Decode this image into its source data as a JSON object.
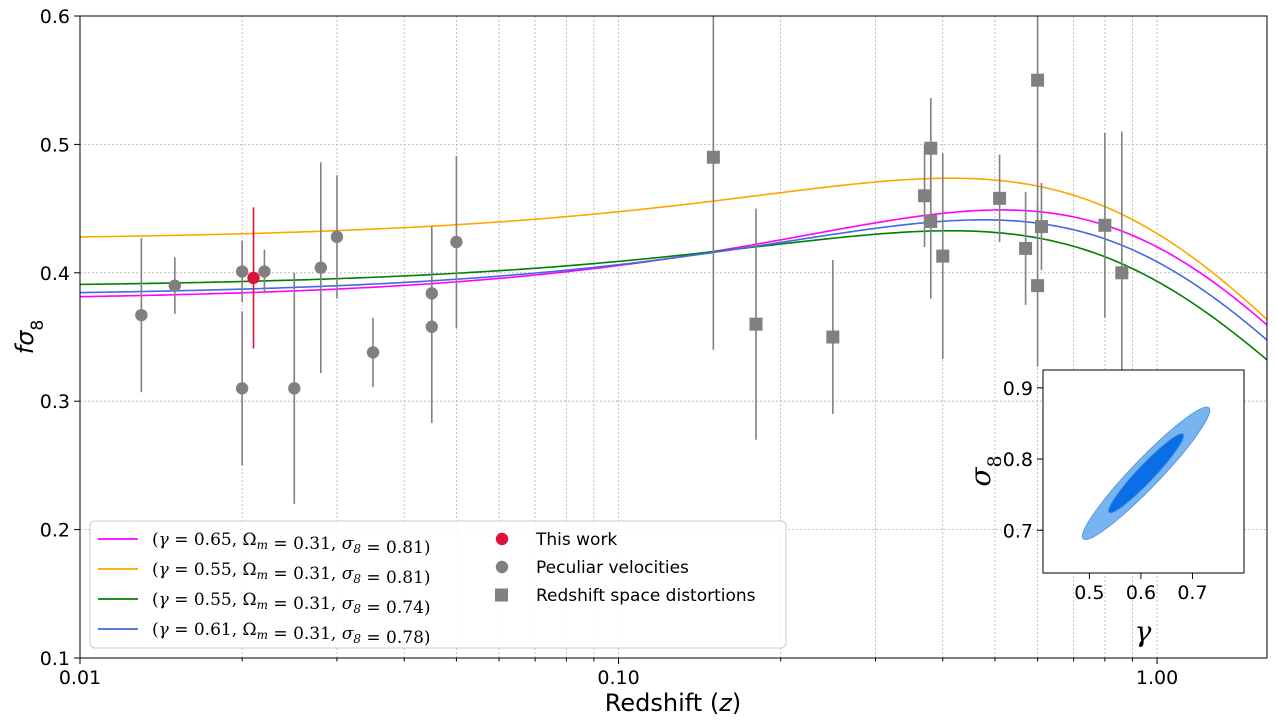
{
  "chart_data": [
    {
      "type": "scatter",
      "xlabel": "Redshift",
      "xlabel_var": "z",
      "ylabel": "fσ8",
      "xscale": "log",
      "xlim": [
        0.01,
        1.6
      ],
      "ylim": [
        0.1,
        0.6
      ],
      "x_ticks": [
        0.01,
        0.1,
        1.0
      ],
      "x_tick_labels": [
        "0.01",
        "0.10",
        "1.00"
      ],
      "y_ticks": [
        0.1,
        0.2,
        0.3,
        0.4,
        0.5,
        0.6
      ],
      "y_tick_labels": [
        "0.1",
        "0.2",
        "0.3",
        "0.4",
        "0.5",
        "0.6"
      ],
      "grid": true,
      "legend_position": "lower-left",
      "series": [
        {
          "name": "(γ = 0.65, Ωm = 0.31, σ8 = 0.81)",
          "kind": "model",
          "gamma": 0.65,
          "omega_m": 0.31,
          "sigma8": 0.81,
          "color": "#ff00ff"
        },
        {
          "name": "(γ = 0.55, Ωm = 0.31, σ8 = 0.81)",
          "kind": "model",
          "gamma": 0.55,
          "omega_m": 0.31,
          "sigma8": 0.81,
          "color": "#ffa500"
        },
        {
          "name": "(γ = 0.55, Ωm = 0.31, σ8 = 0.74)",
          "kind": "model",
          "gamma": 0.55,
          "omega_m": 0.31,
          "sigma8": 0.74,
          "color": "#008000"
        },
        {
          "name": "(γ = 0.61, Ωm = 0.31, σ8 = 0.78)",
          "kind": "model",
          "gamma": 0.61,
          "omega_m": 0.31,
          "sigma8": 0.78,
          "color": "#4169e1"
        },
        {
          "name": "This work",
          "kind": "points",
          "marker": "circle",
          "color": "#dc143c",
          "points": [
            {
              "x": 0.021,
              "y": 0.396,
              "err": 0.055
            }
          ]
        },
        {
          "name": "Peculiar velocities",
          "kind": "points",
          "marker": "circle",
          "color": "#808080",
          "points": [
            {
              "x": 0.013,
              "y": 0.367,
              "err": 0.06
            },
            {
              "x": 0.015,
              "y": 0.39,
              "err": 0.022
            },
            {
              "x": 0.02,
              "y": 0.401,
              "err": 0.024
            },
            {
              "x": 0.02,
              "y": 0.31,
              "err": 0.06
            },
            {
              "x": 0.022,
              "y": 0.401,
              "err": 0.017
            },
            {
              "x": 0.025,
              "y": 0.31,
              "err": 0.09
            },
            {
              "x": 0.028,
              "y": 0.404,
              "err": 0.082
            },
            {
              "x": 0.03,
              "y": 0.428,
              "err": 0.048
            },
            {
              "x": 0.035,
              "y": 0.338,
              "err": 0.027
            },
            {
              "x": 0.045,
              "y": 0.384,
              "err": 0.052
            },
            {
              "x": 0.045,
              "y": 0.358,
              "err": 0.075
            },
            {
              "x": 0.05,
              "y": 0.424,
              "err": 0.067
            }
          ]
        },
        {
          "name": "Redshift space distortions",
          "kind": "points",
          "marker": "square",
          "color": "#808080",
          "points": [
            {
              "x": 0.15,
              "y": 0.49,
              "err": 0.15
            },
            {
              "x": 0.18,
              "y": 0.36,
              "err": 0.09
            },
            {
              "x": 0.25,
              "y": 0.35,
              "err": 0.06
            },
            {
              "x": 0.37,
              "y": 0.46,
              "err": 0.04
            },
            {
              "x": 0.38,
              "y": 0.497,
              "err": 0.039
            },
            {
              "x": 0.38,
              "y": 0.44,
              "err": 0.06
            },
            {
              "x": 0.4,
              "y": 0.413,
              "err": 0.08
            },
            {
              "x": 0.51,
              "y": 0.458,
              "err": 0.034
            },
            {
              "x": 0.57,
              "y": 0.419,
              "err": 0.044
            },
            {
              "x": 0.6,
              "y": 0.55,
              "err": 0.12
            },
            {
              "x": 0.6,
              "y": 0.39,
              "err": 0.063
            },
            {
              "x": 0.61,
              "y": 0.436,
              "err": 0.034
            },
            {
              "x": 0.8,
              "y": 0.437,
              "err": 0.072
            },
            {
              "x": 0.86,
              "y": 0.4,
              "err": 0.11
            }
          ]
        }
      ]
    },
    {
      "type": "contour",
      "xlabel": "γ",
      "ylabel": "σ8",
      "xlim": [
        0.41,
        0.8
      ],
      "ylim": [
        0.64,
        0.925
      ],
      "x_ticks": [
        0.5,
        0.6,
        0.7
      ],
      "x_tick_labels": [
        "0.5",
        "0.6",
        "0.7"
      ],
      "y_ticks": [
        0.7,
        0.8,
        0.9
      ],
      "y_tick_labels": [
        "0.7",
        "0.8",
        "0.9"
      ],
      "center": {
        "gamma": 0.61,
        "sigma8": 0.78
      },
      "contours": [
        {
          "level": "68%",
          "color": "#0a6ee6"
        },
        {
          "level": "95%",
          "color": "#78b4f0"
        }
      ]
    }
  ]
}
